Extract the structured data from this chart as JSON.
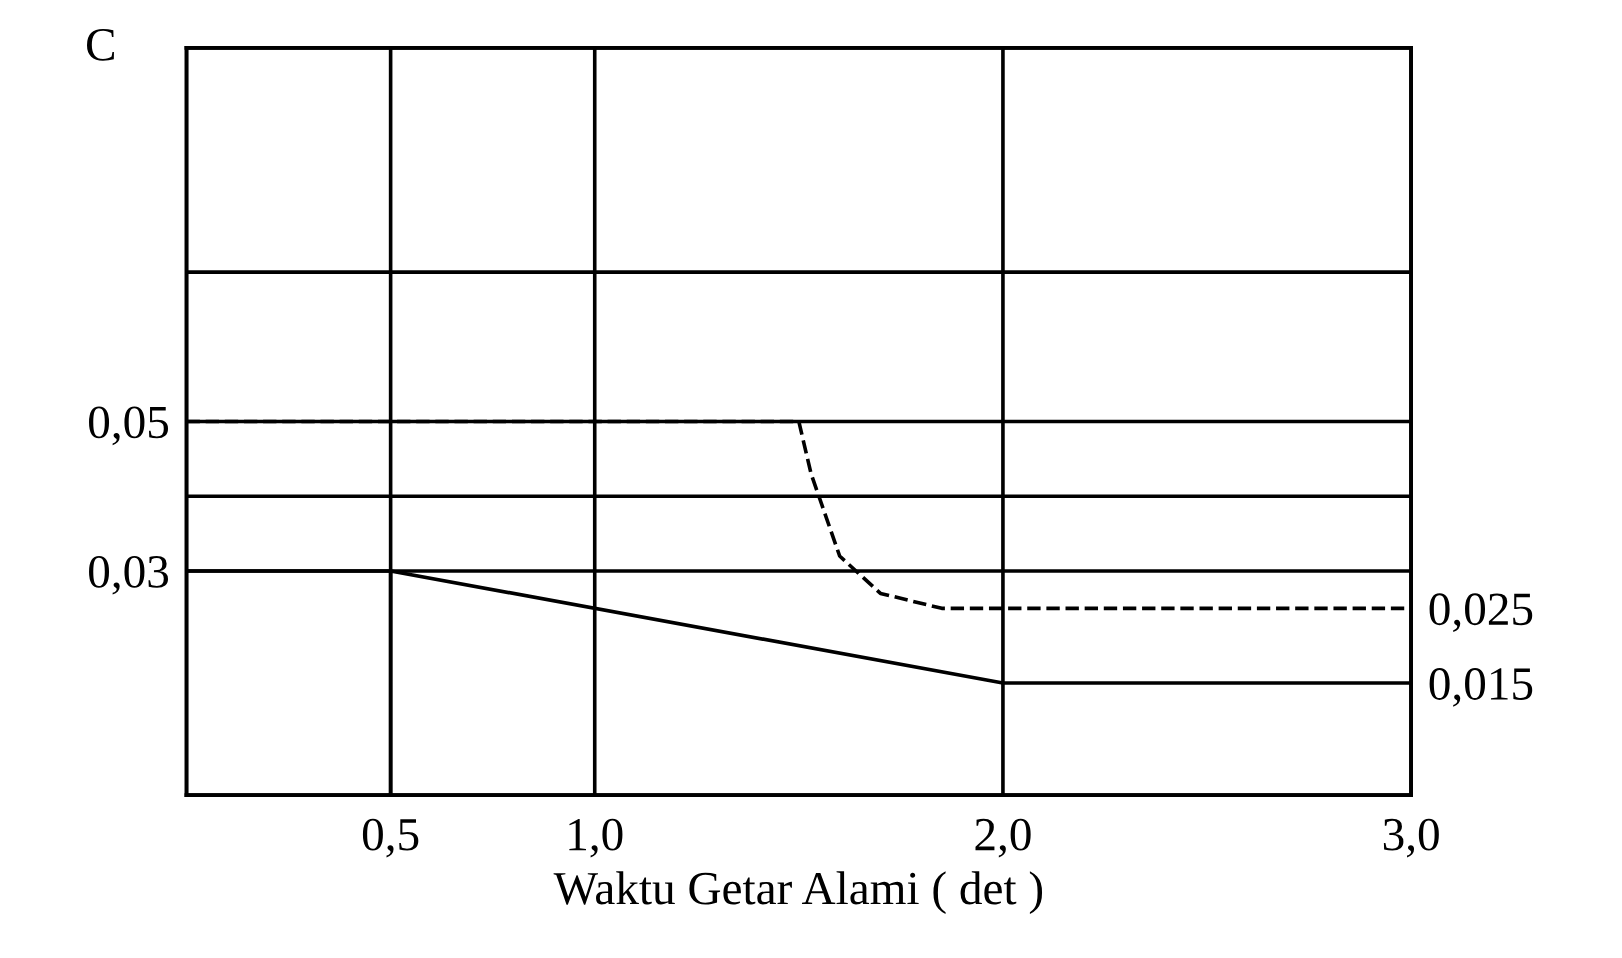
{
  "chart_data": {
    "type": "line",
    "xlabel": "Waktu Getar Alami ( det )",
    "ylabel": "C",
    "series": [
      {
        "color": "#000000",
        "line_style": "solid",
        "x": [
          0,
          0.5,
          0.5,
          0.5,
          2.0,
          3.0
        ],
        "values": [
          0.03,
          0.03,
          0,
          0.03,
          0.015,
          0.015
        ]
      },
      {
        "color": "#000000",
        "line_style": "dashed",
        "x": [
          0,
          1.5,
          1.53,
          1.6,
          1.7,
          1.85,
          3.0
        ],
        "values": [
          0.05,
          0.05,
          0.043,
          0.032,
          0.027,
          0.025,
          0.025
        ]
      }
    ],
    "xlim": [
      0,
      3.0
    ],
    "xticks": [
      {
        "value": 0.5,
        "label": "0,5"
      },
      {
        "value": 1.0,
        "label": "1,0"
      },
      {
        "value": 2.0,
        "label": "2,0"
      },
      {
        "value": 3.0,
        "label": "3,0"
      }
    ],
    "ylim": [
      0,
      0.1
    ],
    "yticks": [
      {
        "value": 0.03,
        "label": "0,03"
      },
      {
        "value": 0.04,
        "label": null
      },
      {
        "value": 0.05,
        "label": "0,05"
      },
      {
        "value": 0.07,
        "label": null
      }
    ],
    "y2lim": [
      0,
      0.1
    ],
    "y2ticks": [
      {
        "value": 0.015,
        "label": "0,015"
      },
      {
        "value": 0.025,
        "label": "0,025"
      }
    ],
    "grid": true,
    "marker": "none"
  }
}
